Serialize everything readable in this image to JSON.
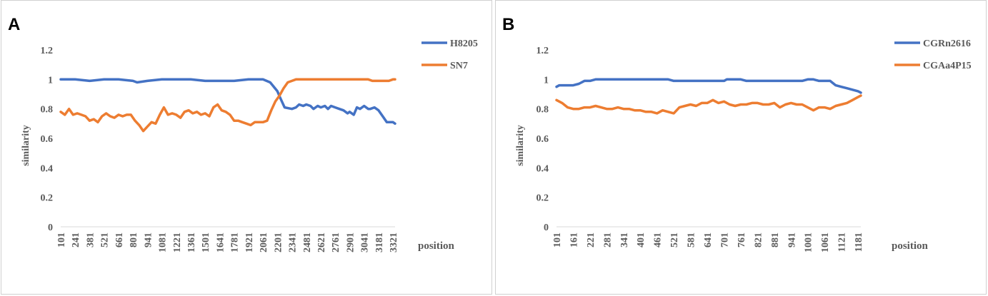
{
  "charts": [
    {
      "panel_label": "A",
      "chart_data": {
        "type": "line",
        "title": "",
        "xlabel": "position",
        "ylabel": "similarity",
        "ylim": [
          0,
          1.2
        ],
        "yticks": [
          "0",
          "0.2",
          "0.4",
          "0.6",
          "0.8",
          "1",
          "1.2"
        ],
        "x_tick_labels": [
          "101",
          "241",
          "381",
          "521",
          "661",
          "801",
          "941",
          "1081",
          "1221",
          "1361",
          "1501",
          "1641",
          "1781",
          "1921",
          "2061",
          "2201",
          "2341",
          "2481",
          "2621",
          "2761",
          "2901",
          "3041",
          "3181",
          "3321"
        ],
        "x_range": [
          101,
          3341
        ],
        "legend_position": "top-right",
        "series": [
          {
            "name": "H8205",
            "color": "#4472C4",
            "x": [
              101,
              241,
              381,
              521,
              661,
              801,
              841,
              941,
              1081,
              1221,
              1361,
              1501,
              1641,
              1781,
              1921,
              2061,
              2131,
              2201,
              2231,
              2271,
              2341,
              2381,
              2411,
              2451,
              2481,
              2521,
              2551,
              2591,
              2621,
              2661,
              2691,
              2721,
              2761,
              2801,
              2841,
              2881,
              2901,
              2941,
              2971,
              3001,
              3041,
              3081,
              3101,
              3141,
              3181,
              3221,
              3261,
              3291,
              3321,
              3341
            ],
            "values": [
              1.0,
              1.0,
              0.99,
              1.0,
              1.0,
              0.99,
              0.98,
              0.99,
              1.0,
              1.0,
              1.0,
              0.99,
              0.99,
              0.99,
              1.0,
              1.0,
              0.98,
              0.92,
              0.87,
              0.81,
              0.8,
              0.81,
              0.83,
              0.82,
              0.83,
              0.82,
              0.8,
              0.82,
              0.81,
              0.82,
              0.8,
              0.82,
              0.81,
              0.8,
              0.79,
              0.77,
              0.78,
              0.76,
              0.81,
              0.8,
              0.82,
              0.8,
              0.8,
              0.81,
              0.79,
              0.75,
              0.71,
              0.71,
              0.71,
              0.7
            ]
          },
          {
            "name": "SN7",
            "color": "#ED7D31",
            "x": [
              101,
              141,
              181,
              221,
              261,
              301,
              341,
              381,
              421,
              461,
              501,
              541,
              581,
              621,
              661,
              701,
              741,
              781,
              821,
              861,
              901,
              941,
              981,
              1021,
              1061,
              1101,
              1141,
              1181,
              1221,
              1261,
              1301,
              1341,
              1381,
              1421,
              1461,
              1501,
              1541,
              1581,
              1621,
              1661,
              1701,
              1741,
              1781,
              1821,
              1861,
              1901,
              1941,
              1981,
              2021,
              2061,
              2101,
              2141,
              2181,
              2221,
              2261,
              2301,
              2341,
              2381,
              2421,
              2461,
              2501,
              2601,
              2701,
              2801,
              2901,
              3001,
              3041,
              3081,
              3121,
              3161,
              3201,
              3241,
              3281,
              3321,
              3341
            ],
            "values": [
              0.78,
              0.76,
              0.8,
              0.76,
              0.77,
              0.76,
              0.75,
              0.72,
              0.73,
              0.71,
              0.75,
              0.77,
              0.75,
              0.74,
              0.76,
              0.75,
              0.76,
              0.76,
              0.72,
              0.69,
              0.65,
              0.68,
              0.71,
              0.7,
              0.76,
              0.81,
              0.76,
              0.77,
              0.76,
              0.74,
              0.78,
              0.79,
              0.77,
              0.78,
              0.76,
              0.77,
              0.75,
              0.81,
              0.83,
              0.79,
              0.78,
              0.76,
              0.72,
              0.72,
              0.71,
              0.7,
              0.69,
              0.71,
              0.71,
              0.71,
              0.72,
              0.79,
              0.85,
              0.89,
              0.94,
              0.98,
              0.99,
              1.0,
              1.0,
              1.0,
              1.0,
              1.0,
              1.0,
              1.0,
              1.0,
              1.0,
              1.0,
              1.0,
              0.99,
              0.99,
              0.99,
              0.99,
              0.99,
              1.0,
              1.0
            ]
          }
        ]
      }
    },
    {
      "panel_label": "B",
      "chart_data": {
        "type": "line",
        "title": "",
        "xlabel": "position",
        "ylabel": "similarity",
        "ylim": [
          0,
          1.2
        ],
        "yticks": [
          "0",
          "0.2",
          "0.4",
          "0.6",
          "0.8",
          "1",
          "1.2"
        ],
        "x_tick_labels": [
          "101",
          "161",
          "221",
          "281",
          "341",
          "401",
          "461",
          "521",
          "581",
          "641",
          "701",
          "761",
          "821",
          "881",
          "941",
          "1001",
          "1061",
          "1121",
          "1181"
        ],
        "x_range": [
          101,
          1191
        ],
        "legend_position": "top-right",
        "series": [
          {
            "name": "CGRn2616",
            "color": "#4472C4",
            "x": [
              101,
              111,
              131,
              161,
              181,
              201,
              221,
              241,
              261,
              281,
              321,
              381,
              441,
              501,
              521,
              581,
              641,
              701,
              711,
              741,
              761,
              781,
              821,
              881,
              941,
              981,
              1001,
              1011,
              1021,
              1041,
              1061,
              1081,
              1101,
              1121,
              1141,
              1161,
              1181,
              1191
            ],
            "values": [
              0.95,
              0.96,
              0.96,
              0.96,
              0.97,
              0.99,
              0.99,
              1.0,
              1.0,
              1.0,
              1.0,
              1.0,
              1.0,
              1.0,
              0.99,
              0.99,
              0.99,
              0.99,
              1.0,
              1.0,
              1.0,
              0.99,
              0.99,
              0.99,
              0.99,
              0.99,
              1.0,
              1.0,
              1.0,
              0.99,
              0.99,
              0.99,
              0.96,
              0.95,
              0.94,
              0.93,
              0.92,
              0.91
            ]
          },
          {
            "name": "CGAa4P15",
            "color": "#ED7D31",
            "x": [
              101,
              121,
              141,
              161,
              181,
              201,
              221,
              241,
              261,
              281,
              301,
              321,
              341,
              361,
              381,
              401,
              421,
              441,
              461,
              481,
              501,
              521,
              541,
              561,
              581,
              601,
              621,
              641,
              661,
              681,
              701,
              721,
              741,
              761,
              781,
              801,
              821,
              841,
              861,
              881,
              901,
              921,
              941,
              961,
              981,
              1001,
              1021,
              1041,
              1061,
              1081,
              1101,
              1121,
              1141,
              1161,
              1181,
              1191
            ],
            "values": [
              0.86,
              0.84,
              0.81,
              0.8,
              0.8,
              0.81,
              0.81,
              0.82,
              0.81,
              0.8,
              0.8,
              0.81,
              0.8,
              0.8,
              0.79,
              0.79,
              0.78,
              0.78,
              0.77,
              0.79,
              0.78,
              0.77,
              0.81,
              0.82,
              0.83,
              0.82,
              0.84,
              0.84,
              0.86,
              0.84,
              0.85,
              0.83,
              0.82,
              0.83,
              0.83,
              0.84,
              0.84,
              0.83,
              0.83,
              0.84,
              0.81,
              0.83,
              0.84,
              0.83,
              0.83,
              0.81,
              0.79,
              0.81,
              0.81,
              0.8,
              0.82,
              0.83,
              0.84,
              0.86,
              0.88,
              0.89
            ]
          }
        ]
      }
    }
  ]
}
